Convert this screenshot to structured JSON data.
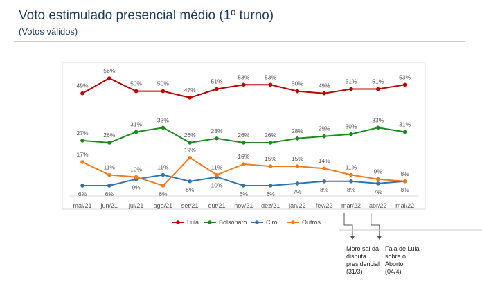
{
  "header": {
    "title": "Voto estimulado presencial médio (1º turno)",
    "subtitle": "(Votos válidos)"
  },
  "chart_data": {
    "type": "line",
    "title": "Voto estimulado presencial médio (1º turno)",
    "subtitle": "(Votos válidos)",
    "categories": [
      "mai/21",
      "jun/21",
      "jul/21",
      "ago/21",
      "set/21",
      "out/21",
      "nov/21",
      "dez/21",
      "jan/22",
      "fev/22",
      "mar/22",
      "abr/22",
      "mai/22"
    ],
    "ylabel": "",
    "xlabel": "",
    "grid": false,
    "legend": "bottom",
    "unit": "%",
    "series": [
      {
        "name": "Lula",
        "color": "#c00000",
        "values": [
          49,
          56,
          50,
          50,
          47,
          51,
          53,
          53,
          50,
          49,
          51,
          51,
          53
        ]
      },
      {
        "name": "Bolsonaro",
        "color": "#1e8a1e",
        "values": [
          27,
          26,
          31,
          33,
          26,
          28,
          26,
          26,
          28,
          29,
          30,
          33,
          31
        ]
      },
      {
        "name": "Ciro",
        "color": "#2e75b6",
        "values": [
          6,
          6,
          9,
          11,
          8,
          10,
          6,
          6,
          7,
          8,
          8,
          7,
          8
        ]
      },
      {
        "name": "Outros",
        "color": "#f07c1e",
        "values": [
          17,
          11,
          10,
          6,
          19,
          11,
          16,
          15,
          15,
          14,
          11,
          9,
          8
        ]
      }
    ],
    "annotations": [
      {
        "category": "mar/22",
        "text": [
          "Moro sai da",
          "disputa",
          "presidencial",
          "(31/3)"
        ]
      },
      {
        "category": "abr/22",
        "text": [
          "Fala de Lula",
          "sobre o",
          "Aborto",
          "(04/4)"
        ]
      }
    ]
  }
}
